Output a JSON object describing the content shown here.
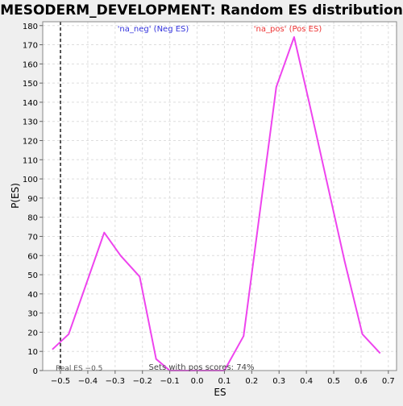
{
  "chart_data": {
    "type": "line",
    "title": "MESODERM_DEVELOPMENT: Random ES distribution",
    "xlabel": "ES",
    "ylabel": "P(ES)",
    "xlim": [
      -0.565,
      0.73
    ],
    "ylim": [
      0,
      182
    ],
    "x_ticks": [
      -0.5,
      -0.4,
      -0.3,
      -0.2,
      -0.1,
      0.0,
      0.1,
      0.2,
      0.3,
      0.4,
      0.5,
      0.6,
      0.7
    ],
    "x_tick_labels": [
      "−0.5",
      "−0.4",
      "−0.3",
      "−0.2",
      "−0.1",
      "0.0",
      "0.1",
      "0.2",
      "0.3",
      "0.4",
      "0.5",
      "0.6",
      "0.7"
    ],
    "y_ticks": [
      0,
      10,
      20,
      30,
      40,
      50,
      60,
      70,
      80,
      90,
      100,
      110,
      120,
      130,
      140,
      150,
      160,
      170,
      180
    ],
    "grid": true,
    "series": [
      {
        "color": "#ee44ee",
        "x": [
          -0.53,
          -0.47,
          -0.34,
          -0.28,
          -0.21,
          -0.15,
          -0.1,
          0.1,
          0.17,
          0.29,
          0.355,
          0.41,
          0.54,
          0.605,
          0.67
        ],
        "y": [
          11,
          19,
          72,
          60,
          49,
          6,
          0,
          0,
          18,
          148,
          174,
          140,
          57,
          19,
          9
        ]
      }
    ],
    "real_es": {
      "x": -0.5,
      "label": "Real ES −0.5",
      "color": "#555555"
    },
    "annotations": {
      "neg_label": "'na_neg' (Neg ES)",
      "neg_color": "#3333dd",
      "pos_label": "'na_pos' (Pos ES)",
      "pos_color": "#ee3333",
      "pos_scores": "Sets with pos scores: 74%"
    }
  }
}
